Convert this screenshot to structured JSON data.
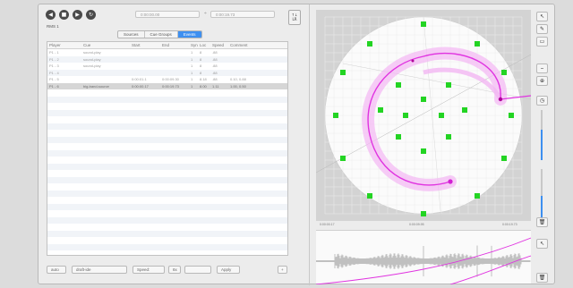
{
  "toolbar": {
    "back_glyph": "◀",
    "stop_glyph": "■",
    "play_glyph": "▶",
    "loop_glyph": "↻",
    "timecode_start": "0:00:00.00",
    "timecode_end": "0:00:19.73",
    "timecode_sep": "÷",
    "time_label": "RMS   1",
    "dial_label": "↑↓\nLR"
  },
  "tabs": [
    {
      "label": "Sources"
    },
    {
      "label": "Cue Groups"
    },
    {
      "label": "Events"
    }
  ],
  "active_tab_index": 2,
  "table": {
    "columns": [
      "Player",
      "",
      "Cue",
      "Start",
      "End",
      "Sync",
      "Loc",
      "Speed",
      "Comment"
    ],
    "rows": [
      [
        "P1 - 1",
        "",
        "sound-play",
        "",
        "",
        "1",
        "8",
        ".88",
        ""
      ],
      [
        "P1 - 2",
        "",
        "sound-play",
        "",
        "",
        "1",
        "8",
        ".88",
        ""
      ],
      [
        "P1 - 3",
        "",
        "sound-play",
        "",
        "",
        "1",
        "8",
        ".88",
        ""
      ],
      [
        "P1 - 4",
        "",
        "",
        "",
        "",
        "1",
        "8",
        ".88",
        ""
      ],
      [
        "P1 - 5",
        "",
        "",
        "0:00:01.1",
        "0:00:09.30",
        "1",
        "8.18",
        ".88",
        "0.10, 0.88"
      ],
      [
        "P1 - 6",
        "",
        "big-band-source",
        "0:00:00.17",
        "0:00:19.73",
        "1",
        "8.00",
        "1.11",
        "1.00, 0.50"
      ]
    ],
    "selected_row_index": 5
  },
  "bottombar": {
    "mode_value": "auto",
    "source_value": "draft-ide",
    "speed_value": "Speed:",
    "multiplier_value": "8x",
    "field_value": "",
    "apply_label": "Apply",
    "add_glyph": "+"
  },
  "wave": {
    "label_left": "0:00:00.17",
    "label_mid": "0:00:09.95",
    "label_right": "0:00:19.73"
  },
  "right_tools": {
    "pointer_glyph": "↖",
    "pen_glyph": "✎",
    "rect_glyph": "▭",
    "line_glyph": "⎯",
    "zoom_glyph": "⊕",
    "clock_glyph": "◷",
    "trash_glyph": "🗑",
    "select_glyph": "↖",
    "trash2_glyph": "🗑"
  },
  "sliders": {
    "upper_level": 0.6,
    "lower_level": 0.45
  },
  "colors": {
    "accent": "#3d8ff0",
    "speaker": "#23d423",
    "trajectory": "#e033e0",
    "trajectory_glow": "#f3b6f3"
  }
}
